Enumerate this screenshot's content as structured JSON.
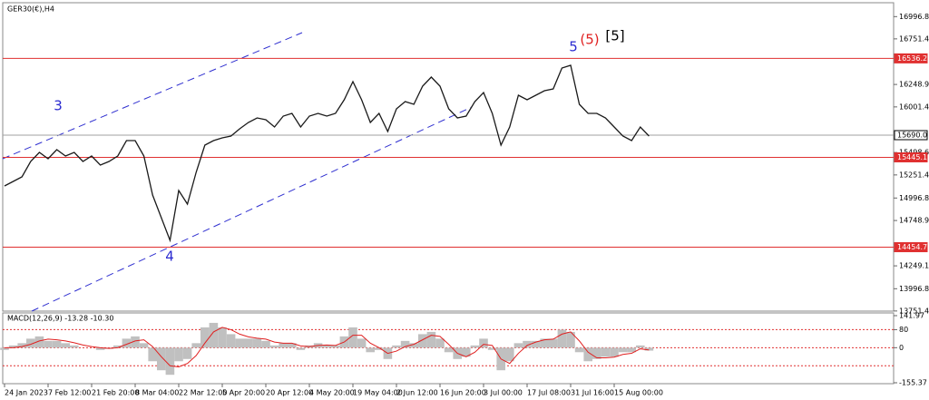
{
  "chart_data": {
    "type": "line",
    "title": "GER30(€),H4",
    "categories": [
      "24 Jan 2023",
      null,
      null,
      null,
      null,
      "7 Feb 12:00",
      null,
      null,
      null,
      null,
      "21 Feb 20:00",
      null,
      null,
      null,
      null,
      "8 Mar 04:00",
      null,
      null,
      null,
      null,
      "22 Mar 12:00",
      null,
      null,
      null,
      null,
      "5 Apr 20:00",
      null,
      null,
      null,
      null,
      "20 Apr 12:00",
      null,
      null,
      null,
      null,
      "4 May 20:00",
      null,
      null,
      null,
      null,
      "19 May 04:00",
      null,
      null,
      null,
      null,
      "2 Jun 12:00",
      null,
      null,
      null,
      null,
      "16 Jun 20:00",
      null,
      null,
      null,
      null,
      "3 Jul 00:00",
      null,
      null,
      null,
      null,
      "17 Jul 08:00",
      null,
      null,
      null,
      null,
      "31 Jul 16:00",
      null,
      null,
      null,
      null,
      "15 Aug 00:00",
      null,
      null,
      null,
      null
    ],
    "series": [
      {
        "color": "#1a1a1a",
        "values": [
          15130,
          15180,
          15230,
          15400,
          15500,
          15430,
          15530,
          15460,
          15500,
          15400,
          15460,
          15360,
          15400,
          15460,
          15630,
          15630,
          15460,
          15030,
          14780,
          14530,
          15080,
          14930,
          15280,
          15580,
          15630,
          15660,
          15680,
          15760,
          15830,
          15880,
          15860,
          15780,
          15900,
          15930,
          15780,
          15900,
          15930,
          15900,
          15930,
          16080,
          16280,
          16080,
          15830,
          15930,
          15730,
          15980,
          16060,
          16030,
          16230,
          16330,
          16230,
          15980,
          15880,
          15900,
          16060,
          16160,
          15930,
          15580,
          15780,
          16130,
          16080,
          16130,
          16180,
          16200,
          16430,
          16460,
          16030,
          15930,
          15930,
          15880,
          15780,
          15680,
          15630,
          15780,
          15680
        ]
      }
    ],
    "ylim": [
      13750,
      17150
    ],
    "yticks": [
      16996.8,
      16751.4,
      16248.9,
      16001.4,
      15498.6,
      15251.4,
      14996.8,
      14748.9,
      14249.1,
      13996.8,
      13751.4
    ],
    "levels": [
      {
        "value": 16536.2,
        "color": "#e03030"
      },
      {
        "value": 15445.1,
        "color": "#e03030"
      },
      {
        "value": 14454.7,
        "color": "#e03030"
      },
      {
        "value": 15690,
        "label": "15690.0",
        "color": "#a0a0a0"
      }
    ],
    "annotations": [
      {
        "text": "3",
        "color": "#2a2ad0"
      },
      {
        "text": "4",
        "color": "#2a2ad0"
      },
      {
        "text": "5",
        "color": "#2a2ad0"
      },
      {
        "text": "(5)",
        "color": "#e02020"
      },
      {
        "text": "[5]",
        "color": "#000000"
      }
    ],
    "macd": {
      "title": "MACD(12,26,9) -13.28 -10.30",
      "ylim": [
        -155.37,
        141.97
      ],
      "yticks": [
        141.97,
        80,
        0,
        -155.37
      ],
      "levels": [
        80,
        0,
        -80
      ],
      "histogram": {
        "color": "#c0c0c0",
        "values": [
          -10,
          10,
          20,
          40,
          50,
          30,
          30,
          20,
          10,
          0,
          0,
          -10,
          -5,
          10,
          40,
          50,
          20,
          -60,
          -100,
          -120,
          -60,
          -50,
          20,
          90,
          110,
          90,
          60,
          40,
          40,
          40,
          30,
          10,
          20,
          20,
          -10,
          10,
          20,
          10,
          10,
          50,
          90,
          40,
          -20,
          -10,
          -50,
          10,
          30,
          20,
          60,
          70,
          40,
          -20,
          -50,
          -40,
          10,
          40,
          -10,
          -100,
          -60,
          20,
          30,
          30,
          40,
          40,
          80,
          70,
          -20,
          -60,
          -50,
          -40,
          -40,
          -20,
          -20,
          10,
          -13
        ]
      },
      "signal": {
        "color": "#e02020",
        "values": [
          0,
          0,
          5,
          15,
          30,
          38,
          35,
          30,
          22,
          12,
          5,
          0,
          -3,
          0,
          15,
          30,
          35,
          5,
          -40,
          -80,
          -85,
          -70,
          -35,
          20,
          70,
          90,
          80,
          60,
          48,
          42,
          38,
          25,
          20,
          20,
          8,
          5,
          10,
          12,
          10,
          25,
          55,
          55,
          20,
          0,
          -25,
          -15,
          5,
          15,
          35,
          55,
          50,
          15,
          -25,
          -40,
          -20,
          15,
          10,
          -50,
          -70,
          -25,
          10,
          25,
          35,
          38,
          60,
          70,
          30,
          -20,
          -45,
          -45,
          -42,
          -30,
          -25,
          -5,
          -10
        ]
      }
    }
  }
}
